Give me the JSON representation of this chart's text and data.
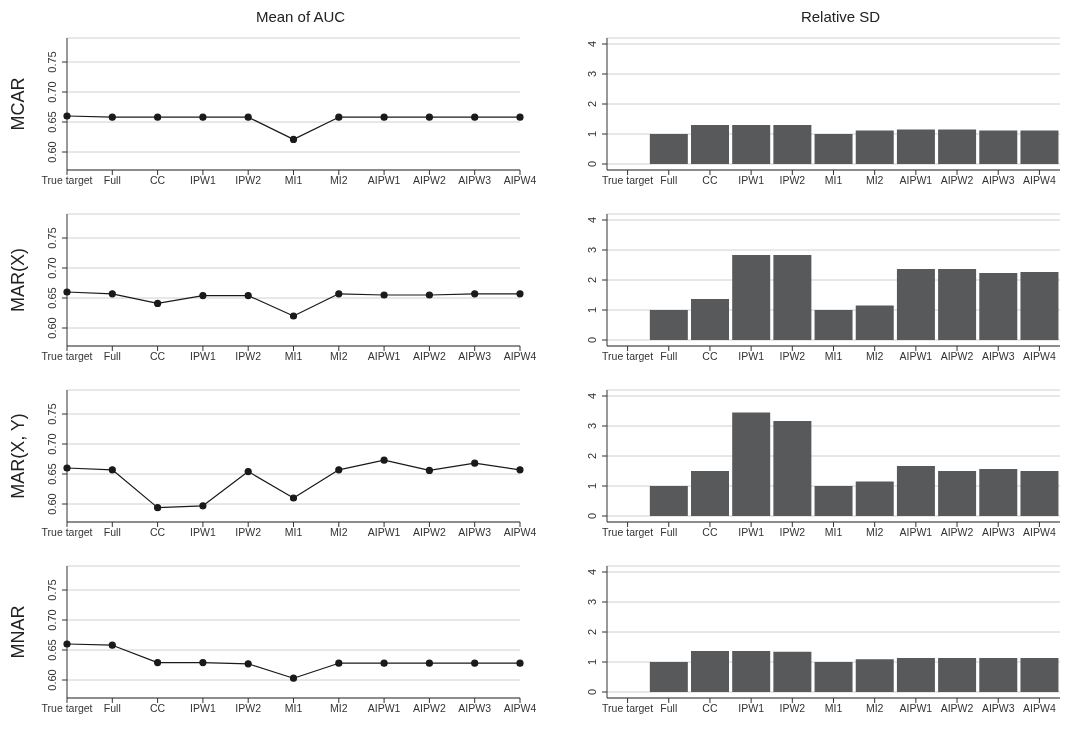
{
  "chart_data": [
    {
      "type": "line",
      "title": "Mean of AUC",
      "ylabel": "MCAR",
      "categories": [
        "True target",
        "Full",
        "CC",
        "IPW1",
        "IPW2",
        "MI1",
        "MI2",
        "AIPW1",
        "AIPW2",
        "AIPW3",
        "AIPW4"
      ],
      "series": [
        {
          "color": "#1a1a1a",
          "values": [
            0.66,
            0.658,
            0.658,
            0.658,
            0.658,
            0.621,
            0.658,
            0.658,
            0.658,
            0.658,
            0.658
          ]
        }
      ],
      "ylim": [
        0.57,
        0.79
      ],
      "yticks": [
        {
          "value": 0.6,
          "label": "0.60"
        },
        {
          "value": 0.65,
          "label": "0.65"
        },
        {
          "value": 0.7,
          "label": "0.70"
        },
        {
          "value": 0.75,
          "label": "0.75"
        }
      ],
      "grid": "y",
      "marker": "circle",
      "line_style": "solid"
    },
    {
      "type": "bar",
      "title": "Relative SD",
      "categories": [
        "True target",
        "Full",
        "CC",
        "IPW1",
        "IPW2",
        "MI1",
        "MI2",
        "AIPW1",
        "AIPW2",
        "AIPW3",
        "AIPW4"
      ],
      "series": [
        {
          "color": "#58595b",
          "values": [
            0,
            1.0,
            1.3,
            1.3,
            1.3,
            1.0,
            1.12,
            1.15,
            1.15,
            1.12,
            1.12
          ]
        }
      ],
      "ylim": [
        -0.2,
        4.2
      ],
      "yticks": [
        0,
        1,
        2,
        3,
        4
      ],
      "grid": "y"
    },
    {
      "type": "line",
      "ylabel": "MAR(X)",
      "categories": [
        "True target",
        "Full",
        "CC",
        "IPW1",
        "IPW2",
        "MI1",
        "MI2",
        "AIPW1",
        "AIPW2",
        "AIPW3",
        "AIPW4"
      ],
      "series": [
        {
          "color": "#1a1a1a",
          "values": [
            0.66,
            0.657,
            0.641,
            0.654,
            0.654,
            0.62,
            0.657,
            0.655,
            0.655,
            0.657,
            0.657
          ]
        }
      ],
      "ylim": [
        0.57,
        0.79
      ],
      "yticks": [
        {
          "value": 0.6,
          "label": "0.60"
        },
        {
          "value": 0.65,
          "label": "0.65"
        },
        {
          "value": 0.7,
          "label": "0.70"
        },
        {
          "value": 0.75,
          "label": "0.75"
        }
      ],
      "grid": "y",
      "marker": "circle",
      "line_style": "solid"
    },
    {
      "type": "bar",
      "categories": [
        "True target",
        "Full",
        "CC",
        "IPW1",
        "IPW2",
        "MI1",
        "MI2",
        "AIPW1",
        "AIPW2",
        "AIPW3",
        "AIPW4"
      ],
      "series": [
        {
          "color": "#58595b",
          "values": [
            0,
            1.0,
            1.37,
            2.83,
            2.83,
            1.0,
            1.15,
            2.37,
            2.37,
            2.23,
            2.27
          ]
        }
      ],
      "ylim": [
        -0.2,
        4.2
      ],
      "yticks": [
        0,
        1,
        2,
        3,
        4
      ],
      "grid": "y"
    },
    {
      "type": "line",
      "ylabel": "MAR(X, Y)",
      "categories": [
        "True target",
        "Full",
        "CC",
        "IPW1",
        "IPW2",
        "MI1",
        "MI2",
        "AIPW1",
        "AIPW2",
        "AIPW3",
        "AIPW4"
      ],
      "series": [
        {
          "color": "#1a1a1a",
          "values": [
            0.66,
            0.657,
            0.594,
            0.597,
            0.654,
            0.61,
            0.657,
            0.673,
            0.656,
            0.668,
            0.657
          ]
        }
      ],
      "ylim": [
        0.57,
        0.79
      ],
      "yticks": [
        {
          "value": 0.6,
          "label": "0.60"
        },
        {
          "value": 0.65,
          "label": "0.65"
        },
        {
          "value": 0.7,
          "label": "0.70"
        },
        {
          "value": 0.75,
          "label": "0.75"
        }
      ],
      "grid": "y",
      "marker": "circle",
      "line_style": "solid"
    },
    {
      "type": "bar",
      "categories": [
        "True target",
        "Full",
        "CC",
        "IPW1",
        "IPW2",
        "MI1",
        "MI2",
        "AIPW1",
        "AIPW2",
        "AIPW3",
        "AIPW4"
      ],
      "series": [
        {
          "color": "#58595b",
          "values": [
            0,
            1.0,
            1.5,
            3.45,
            3.17,
            1.0,
            1.15,
            1.67,
            1.5,
            1.57,
            1.5
          ]
        }
      ],
      "ylim": [
        -0.2,
        4.2
      ],
      "yticks": [
        0,
        1,
        2,
        3,
        4
      ],
      "grid": "y"
    },
    {
      "type": "line",
      "ylabel": "MNAR",
      "categories": [
        "True target",
        "Full",
        "CC",
        "IPW1",
        "IPW2",
        "MI1",
        "MI2",
        "AIPW1",
        "AIPW2",
        "AIPW3",
        "AIPW4"
      ],
      "series": [
        {
          "color": "#1a1a1a",
          "values": [
            0.66,
            0.658,
            0.629,
            0.629,
            0.627,
            0.603,
            0.628,
            0.628,
            0.628,
            0.628,
            0.628
          ]
        }
      ],
      "ylim": [
        0.57,
        0.79
      ],
      "yticks": [
        {
          "value": 0.6,
          "label": "0.60"
        },
        {
          "value": 0.65,
          "label": "0.65"
        },
        {
          "value": 0.7,
          "label": "0.70"
        },
        {
          "value": 0.75,
          "label": "0.75"
        }
      ],
      "grid": "y",
      "marker": "circle",
      "line_style": "solid"
    },
    {
      "type": "bar",
      "categories": [
        "True target",
        "Full",
        "CC",
        "IPW1",
        "IPW2",
        "MI1",
        "MI2",
        "AIPW1",
        "AIPW2",
        "AIPW3",
        "AIPW4"
      ],
      "series": [
        {
          "color": "#58595b",
          "values": [
            0,
            1.0,
            1.37,
            1.37,
            1.34,
            1.0,
            1.09,
            1.13,
            1.13,
            1.13,
            1.13
          ]
        }
      ],
      "ylim": [
        -0.2,
        4.2
      ],
      "yticks": [
        0,
        1,
        2,
        3,
        4
      ],
      "grid": "y"
    }
  ]
}
